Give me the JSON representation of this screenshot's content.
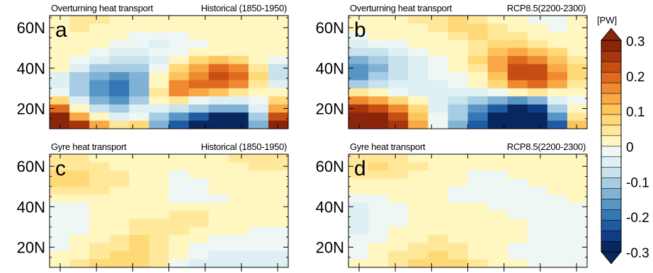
{
  "colorbar": {
    "unit": "[PW]",
    "ticks": [
      "0.3",
      "0.2",
      "0.1",
      "0",
      "-0.1",
      "-0.2",
      "-0.3"
    ],
    "tick_values": [
      0.3,
      0.2,
      0.1,
      0,
      -0.1,
      -0.2,
      -0.3
    ],
    "range": [
      -0.3,
      0.3
    ],
    "extend": "both",
    "colors": [
      "#08275e",
      "#113d86",
      "#1f5ba3",
      "#3378b5",
      "#5796c4",
      "#7fb2d4",
      "#a6cde3",
      "#c8e2ee",
      "#def0f3",
      "#eef7f4",
      "#fff6c0",
      "#ffe89a",
      "#ffd878",
      "#fdc35c",
      "#f8a945",
      "#ef8a30",
      "#e06a20",
      "#c64e13",
      "#a8360d",
      "#8a250b"
    ]
  },
  "chart_data": [
    {
      "id": "a",
      "type": "heatmap",
      "title_left": "Overturning heat transport",
      "title_right": "Historical (1850-1950)",
      "panel_label": "a",
      "y_tick_labels": [
        "60N",
        "40N",
        "20N"
      ],
      "y_ticks": [
        60,
        40,
        20
      ],
      "ylim": [
        10,
        66
      ],
      "rows_lat_from_north": [
        64,
        60,
        56,
        52,
        48,
        44,
        40,
        36,
        32,
        28,
        24,
        20,
        16,
        12
      ],
      "values": [
        [
          0.03,
          0.04,
          0.04,
          0.03,
          0.02,
          0.02,
          0.03,
          0.03,
          0.03,
          0.02,
          0.02,
          0.03
        ],
        [
          0.03,
          0.04,
          0.03,
          0.02,
          0.01,
          0.01,
          0.01,
          0.02,
          0.03,
          0.03,
          0.03,
          0.03
        ],
        [
          0.03,
          0.02,
          0.01,
          0.0,
          -0.01,
          -0.02,
          -0.01,
          0.0,
          0.01,
          0.02,
          0.02,
          0.02
        ],
        [
          0.03,
          0.01,
          0.0,
          -0.02,
          -0.03,
          -0.04,
          -0.03,
          -0.01,
          0.0,
          0.01,
          0.01,
          0.01
        ],
        [
          0.02,
          0.0,
          -0.02,
          -0.04,
          -0.05,
          -0.03,
          -0.02,
          0.0,
          0.02,
          0.03,
          0.01,
          0.0
        ],
        [
          0.01,
          -0.02,
          -0.05,
          -0.07,
          -0.08,
          -0.04,
          0.03,
          0.06,
          0.1,
          0.08,
          0.02,
          -0.02
        ],
        [
          0.0,
          -0.05,
          -0.1,
          -0.12,
          -0.11,
          -0.02,
          0.07,
          0.13,
          0.18,
          0.15,
          0.05,
          -0.08
        ],
        [
          -0.04,
          -0.1,
          -0.14,
          -0.16,
          -0.13,
          0.0,
          0.1,
          0.17,
          0.23,
          0.19,
          0.06,
          -0.09
        ],
        [
          -0.05,
          -0.12,
          -0.18,
          -0.2,
          -0.15,
          0.02,
          0.15,
          0.2,
          0.2,
          0.16,
          0.04,
          -0.05
        ],
        [
          -0.02,
          -0.1,
          -0.16,
          -0.2,
          -0.14,
          0.04,
          0.15,
          0.12,
          0.09,
          0.05,
          0.0,
          0.03
        ],
        [
          0.06,
          -0.06,
          -0.14,
          -0.17,
          -0.1,
          0.02,
          0.05,
          -0.02,
          -0.05,
          -0.05,
          -0.01,
          0.06
        ],
        [
          0.18,
          0.03,
          -0.08,
          -0.12,
          -0.05,
          -0.05,
          -0.08,
          -0.12,
          -0.15,
          -0.14,
          -0.04,
          0.13
        ],
        [
          0.27,
          0.13,
          0.0,
          -0.05,
          -0.02,
          -0.1,
          -0.17,
          -0.22,
          -0.27,
          -0.27,
          -0.1,
          0.22
        ],
        [
          0.32,
          0.24,
          0.12,
          0.05,
          0.07,
          -0.14,
          -0.23,
          -0.28,
          -0.32,
          -0.32,
          -0.15,
          0.29
        ]
      ]
    },
    {
      "id": "b",
      "type": "heatmap",
      "title_left": "Overturning heat transport",
      "title_right": "RCP8.5(2200-2300)",
      "panel_label": "b",
      "y_tick_labels": [
        "60N",
        "40N",
        "20N"
      ],
      "y_ticks": [
        60,
        40,
        20
      ],
      "ylim": [
        10,
        66
      ],
      "rows_lat_from_north": [
        64,
        60,
        56,
        52,
        48,
        44,
        40,
        36,
        32,
        28,
        24,
        20,
        16,
        12
      ],
      "values": [
        [
          0.02,
          0.02,
          0.03,
          0.04,
          0.05,
          0.06,
          0.05,
          0.03,
          0.01,
          -0.01,
          -0.03,
          0.0
        ],
        [
          0.01,
          0.01,
          0.02,
          0.03,
          0.05,
          0.06,
          0.06,
          0.04,
          0.02,
          0.0,
          -0.02,
          0.01
        ],
        [
          -0.01,
          0.0,
          0.01,
          0.02,
          0.03,
          0.05,
          0.06,
          0.05,
          0.04,
          0.02,
          0.0,
          0.01
        ],
        [
          -0.04,
          -0.03,
          -0.01,
          0.0,
          0.02,
          0.03,
          0.05,
          0.07,
          0.07,
          0.05,
          0.03,
          0.02
        ],
        [
          -0.09,
          -0.07,
          -0.04,
          -0.02,
          0.0,
          0.02,
          0.05,
          0.1,
          0.14,
          0.11,
          0.06,
          0.03
        ],
        [
          -0.14,
          -0.11,
          -0.07,
          -0.04,
          -0.02,
          0.01,
          0.06,
          0.13,
          0.19,
          0.17,
          0.1,
          0.04
        ],
        [
          -0.18,
          -0.14,
          -0.09,
          -0.05,
          -0.02,
          0.0,
          0.05,
          0.13,
          0.21,
          0.21,
          0.14,
          0.06
        ],
        [
          -0.17,
          -0.12,
          -0.08,
          -0.05,
          -0.03,
          -0.01,
          0.03,
          0.11,
          0.21,
          0.23,
          0.16,
          0.06
        ],
        [
          -0.1,
          -0.08,
          -0.06,
          -0.05,
          -0.04,
          -0.03,
          0.0,
          0.07,
          0.15,
          0.18,
          0.12,
          0.04
        ],
        [
          0.04,
          0.01,
          -0.02,
          -0.04,
          -0.05,
          -0.05,
          -0.05,
          -0.02,
          0.03,
          0.05,
          0.02,
          0.01
        ],
        [
          0.16,
          0.13,
          0.08,
          0.02,
          -0.05,
          -0.08,
          -0.12,
          -0.15,
          -0.16,
          -0.14,
          -0.06,
          -0.01
        ],
        [
          0.25,
          0.22,
          0.16,
          0.06,
          -0.04,
          -0.1,
          -0.17,
          -0.23,
          -0.28,
          -0.26,
          -0.12,
          0.02
        ],
        [
          0.31,
          0.28,
          0.22,
          0.1,
          -0.03,
          -0.12,
          -0.2,
          -0.27,
          -0.32,
          -0.31,
          -0.18,
          0.05
        ],
        [
          0.32,
          0.31,
          0.26,
          0.13,
          -0.02,
          -0.13,
          -0.22,
          -0.29,
          -0.33,
          -0.33,
          -0.22,
          0.1
        ]
      ]
    },
    {
      "id": "c",
      "type": "heatmap",
      "title_left": "Gyre heat transport",
      "title_right": "Historical (1850-1950)",
      "panel_label": "c",
      "y_tick_labels": [
        "60N",
        "40N",
        "20N"
      ],
      "y_ticks": [
        60,
        40,
        20
      ],
      "ylim": [
        10,
        66
      ],
      "rows_lat_from_north": [
        64,
        60,
        56,
        52,
        48,
        44,
        40,
        36,
        32,
        28,
        24,
        20,
        16,
        12
      ],
      "values": [
        [
          0.04,
          0.04,
          0.03,
          0.03,
          0.02,
          0.01,
          0.01,
          0.02,
          0.03,
          0.04,
          0.04,
          0.04
        ],
        [
          0.05,
          0.05,
          0.04,
          0.03,
          0.02,
          0.01,
          0.0,
          0.01,
          0.02,
          0.03,
          0.04,
          0.04
        ],
        [
          0.06,
          0.06,
          0.05,
          0.04,
          0.02,
          0.0,
          -0.01,
          0.0,
          0.01,
          0.02,
          0.03,
          0.03
        ],
        [
          0.06,
          0.06,
          0.05,
          0.04,
          0.02,
          0.0,
          -0.01,
          -0.01,
          0.0,
          0.01,
          0.02,
          0.03
        ],
        [
          0.05,
          0.05,
          0.04,
          0.03,
          0.01,
          0.0,
          -0.01,
          -0.01,
          0.0,
          0.0,
          0.01,
          0.02
        ],
        [
          0.02,
          0.02,
          0.02,
          0.01,
          0.0,
          0.0,
          -0.01,
          -0.01,
          -0.01,
          0.0,
          0.0,
          0.01
        ],
        [
          -0.01,
          -0.01,
          0.0,
          0.0,
          0.01,
          0.02,
          0.02,
          0.01,
          0.0,
          0.0,
          0.0,
          0.0
        ],
        [
          -0.02,
          -0.01,
          0.0,
          0.01,
          0.02,
          0.03,
          0.04,
          0.04,
          0.03,
          0.02,
          0.01,
          0.0
        ],
        [
          -0.02,
          -0.01,
          0.0,
          0.02,
          0.04,
          0.05,
          0.05,
          0.04,
          0.03,
          0.02,
          0.01,
          0.0
        ],
        [
          -0.02,
          -0.01,
          0.01,
          0.03,
          0.05,
          0.05,
          0.04,
          0.02,
          0.01,
          0.0,
          -0.01,
          -0.01
        ],
        [
          -0.02,
          0.0,
          0.03,
          0.05,
          0.06,
          0.05,
          0.02,
          0.0,
          -0.02,
          -0.02,
          -0.02,
          -0.02
        ],
        [
          -0.01,
          0.02,
          0.04,
          0.05,
          0.06,
          0.04,
          0.01,
          -0.02,
          -0.03,
          -0.03,
          -0.03,
          -0.03
        ],
        [
          0.0,
          0.03,
          0.05,
          0.06,
          0.06,
          0.04,
          0.0,
          -0.03,
          -0.04,
          -0.04,
          -0.04,
          -0.04
        ],
        [
          0.01,
          0.04,
          0.06,
          0.07,
          0.07,
          0.04,
          -0.01,
          -0.04,
          -0.05,
          -0.05,
          -0.05,
          -0.05
        ]
      ]
    },
    {
      "id": "d",
      "type": "heatmap",
      "title_left": "Gyre heat transport",
      "title_right": "RCP8.5(2200-2300)",
      "panel_label": "d",
      "y_tick_labels": [
        "60N",
        "40N",
        "20N"
      ],
      "y_ticks": [
        60,
        40,
        20
      ],
      "ylim": [
        10,
        66
      ],
      "rows_lat_from_north": [
        64,
        60,
        56,
        52,
        48,
        44,
        40,
        36,
        32,
        28,
        24,
        20,
        16,
        12
      ],
      "values": [
        [
          0.04,
          0.05,
          0.04,
          0.03,
          0.02,
          0.01,
          0.0,
          0.0,
          0.01,
          0.01,
          0.01,
          0.02
        ],
        [
          0.05,
          0.06,
          0.05,
          0.04,
          0.02,
          0.01,
          0.0,
          0.0,
          0.0,
          0.01,
          0.01,
          0.02
        ],
        [
          0.04,
          0.05,
          0.04,
          0.03,
          0.02,
          0.0,
          -0.01,
          -0.01,
          0.0,
          0.0,
          0.01,
          0.01
        ],
        [
          0.02,
          0.03,
          0.03,
          0.02,
          0.01,
          0.0,
          -0.01,
          -0.02,
          -0.01,
          0.0,
          0.0,
          0.01
        ],
        [
          0.0,
          0.01,
          0.01,
          0.01,
          0.0,
          -0.01,
          -0.02,
          -0.02,
          -0.02,
          -0.01,
          0.0,
          0.0
        ],
        [
          -0.02,
          -0.01,
          0.0,
          0.0,
          0.0,
          -0.01,
          -0.02,
          -0.02,
          -0.02,
          -0.01,
          -0.01,
          0.0
        ],
        [
          -0.04,
          -0.03,
          -0.01,
          0.0,
          0.01,
          0.01,
          0.0,
          -0.01,
          -0.02,
          -0.02,
          -0.01,
          -0.01
        ],
        [
          -0.05,
          -0.03,
          -0.01,
          0.01,
          0.02,
          0.02,
          0.01,
          0.0,
          -0.01,
          -0.01,
          -0.01,
          -0.01
        ],
        [
          -0.05,
          -0.03,
          -0.01,
          0.01,
          0.03,
          0.03,
          0.02,
          0.01,
          0.0,
          -0.01,
          -0.01,
          -0.01
        ],
        [
          -0.04,
          -0.02,
          0.0,
          0.02,
          0.03,
          0.03,
          0.02,
          0.01,
          0.0,
          -0.01,
          -0.01,
          -0.01
        ],
        [
          -0.03,
          -0.01,
          0.01,
          0.03,
          0.04,
          0.03,
          0.02,
          0.01,
          0.0,
          -0.01,
          -0.02,
          -0.02
        ],
        [
          -0.02,
          0.0,
          0.02,
          0.04,
          0.05,
          0.04,
          0.02,
          0.0,
          -0.01,
          -0.02,
          -0.02,
          -0.02
        ],
        [
          -0.01,
          0.01,
          0.04,
          0.05,
          0.06,
          0.05,
          0.03,
          0.01,
          -0.01,
          -0.02,
          -0.03,
          -0.03
        ],
        [
          0.0,
          0.02,
          0.05,
          0.06,
          0.07,
          0.06,
          0.04,
          0.02,
          0.0,
          -0.02,
          -0.03,
          -0.03
        ]
      ]
    }
  ]
}
